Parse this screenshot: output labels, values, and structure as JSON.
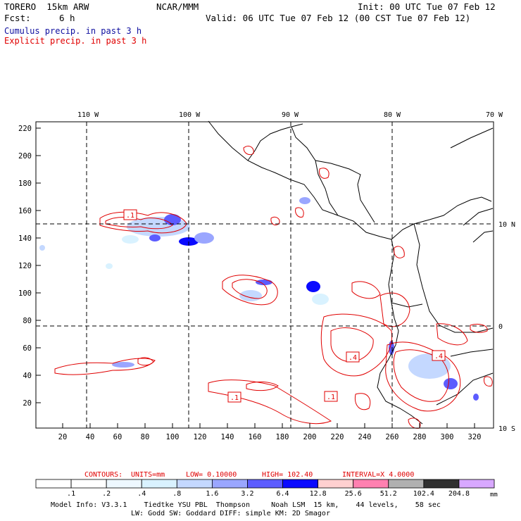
{
  "header": {
    "model": "TORERO  15km ARW",
    "org": "NCAR/MMM",
    "init": "Init: 00 UTC Tue 07 Feb 12",
    "fcst_label": "Fcst:",
    "fcst_value": "6 h",
    "valid": "Valid: 06 UTC Tue 07 Feb 12 (00 CST Tue 07 Feb 12)"
  },
  "legend_lines": {
    "cumulus": "Cumulus precip. in past 3 h",
    "explicit": "Explicit precip. in past 3 h"
  },
  "map": {
    "lon_labels": [
      "110 W",
      "100 W",
      "90 W",
      "80 W",
      "70 W"
    ],
    "lat_labels": [
      "10 N",
      "0",
      "10 S"
    ],
    "y_ticks": [
      "220",
      "200",
      "180",
      "160",
      "140",
      "120",
      "100",
      "80",
      "60",
      "40",
      "20"
    ],
    "x_ticks": [
      "20",
      "40",
      "60",
      "80",
      "100",
      "120",
      "140",
      "160",
      "180",
      "200",
      "220",
      "240",
      "260",
      "280",
      "300",
      "320"
    ],
    "contour_labels": [
      ".1",
      ".4",
      ".4",
      ".1",
      ".1"
    ]
  },
  "contour_info": {
    "contours": "CONTOURS:",
    "units": "UNITS=mm",
    "low": "LOW= 0.10000",
    "high": "HIGH=  102.40",
    "interval": "INTERVAL=X  4.0000"
  },
  "colorbar": {
    "labels": [
      ".1",
      ".2",
      ".4",
      ".8",
      "1.6",
      "3.2",
      "6.4",
      "12.8",
      "25.6",
      "51.2",
      "102.4",
      "204.8"
    ],
    "unit": "mm",
    "colors": [
      "#ffffff",
      "#ffffff",
      "#eef8ff",
      "#d9f2ff",
      "#c4d8ff",
      "#9aa6ff",
      "#5c5cff",
      "#0a0aff",
      "#ffd0d0",
      "#ff80b0",
      "#b0b0b0",
      "#303030",
      "#d8a8ff"
    ]
  },
  "footer": {
    "line1": "Model Info: V3.3.1    Tiedtke YSU PBL  Thompson     Noah LSM  15 km,    44 levels,    58 sec",
    "line2": "LW: Godd SW: Goddard DIFF: simple KM: 2D Smagor"
  }
}
